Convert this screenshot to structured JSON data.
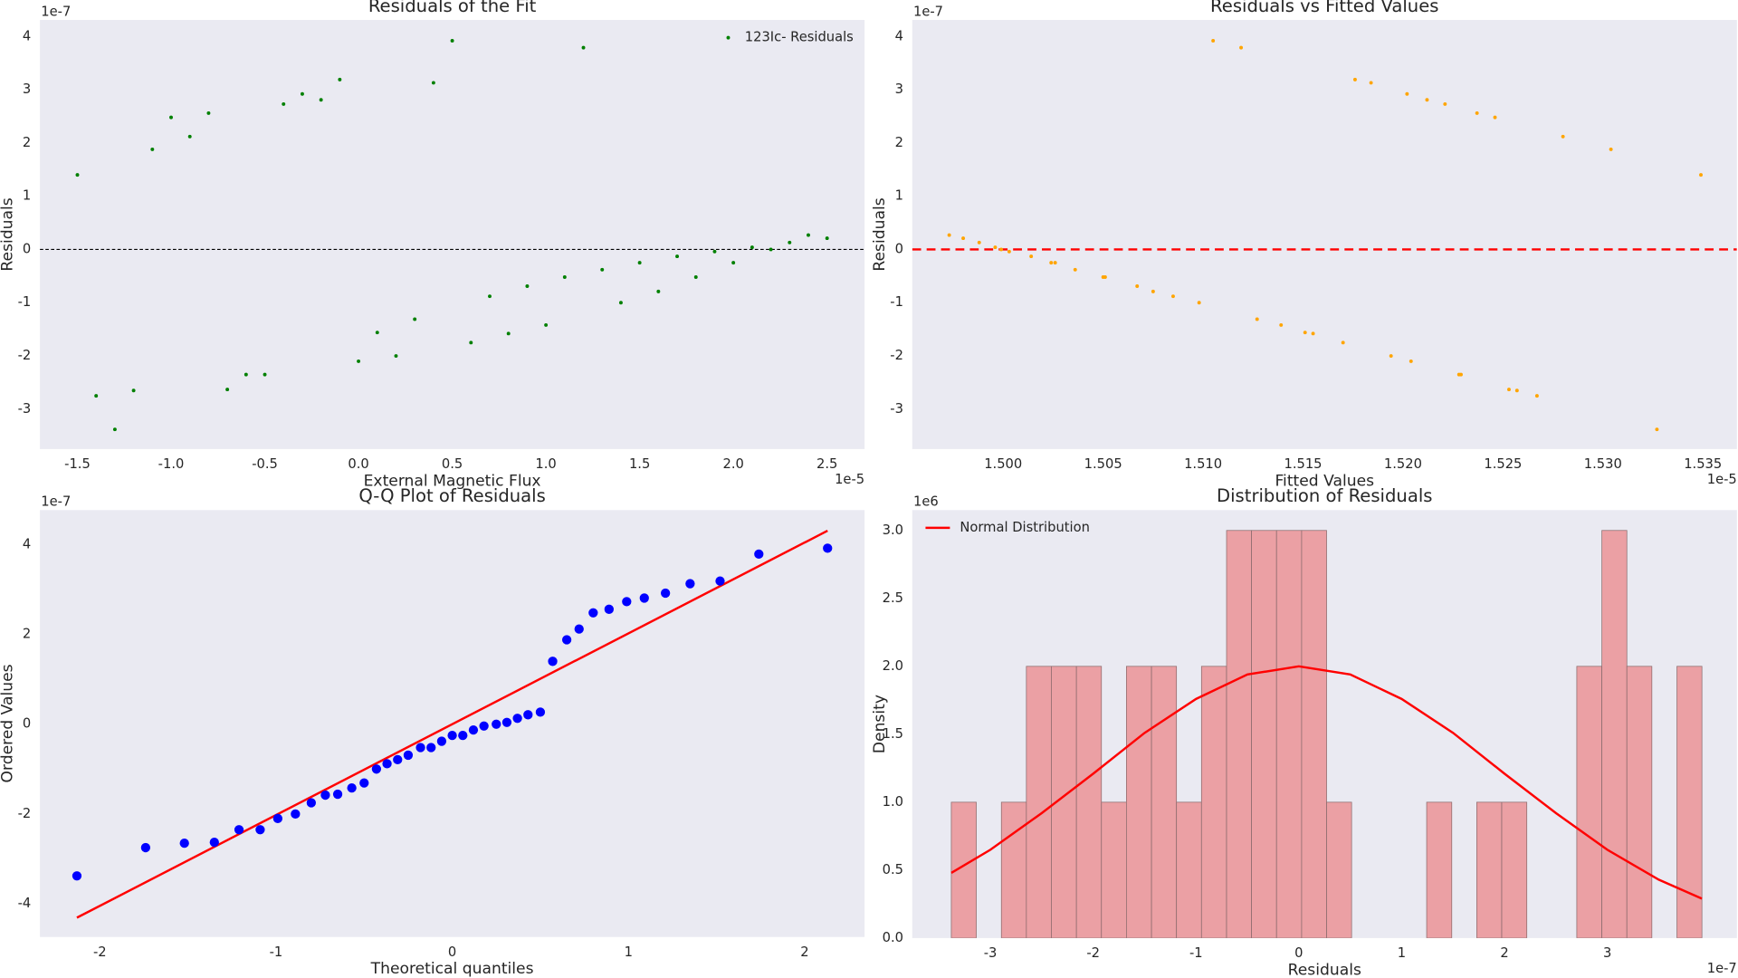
{
  "chart_data": [
    {
      "type": "scatter",
      "title": "Residuals of the Fit",
      "x_label": "External Magnetic Flux",
      "y_label": "Residuals",
      "x_offset": "1e-5",
      "y_offset": "1e-7",
      "legend": "upper right",
      "hline": 0,
      "hline_color": "black",
      "xlim": [
        -1.7,
        2.7
      ],
      "ylim": [
        -3.75,
        4.31
      ],
      "xticks": [
        -1.5,
        {
          "value": -1.0,
          "label": "-1.0"
        },
        -0.5,
        {
          "value": 0,
          "label": "0.0"
        },
        0.5,
        {
          "value": 1.0,
          "label": "1.0"
        },
        1.5,
        {
          "value": 2.0,
          "label": "2.0"
        },
        2.5
      ],
      "yticks": [
        -3,
        -2,
        -1,
        0,
        1,
        2,
        3,
        4
      ],
      "series": [
        {
          "name": "123Ic- Residuals",
          "color": "green",
          "x": [
            -1.5,
            -1.4,
            -1.3,
            -1.2,
            -1.1,
            -1.0,
            -0.9,
            -0.8,
            -0.7,
            -0.6,
            -0.5,
            -0.4,
            -0.3,
            -0.2,
            -0.1,
            0,
            0.1,
            0.2,
            0.3,
            0.4,
            0.5,
            0.6,
            0.7,
            0.8,
            0.9,
            1.0,
            1.1,
            1.2,
            1.3,
            1.4,
            1.5,
            1.6,
            1.7,
            1.8,
            1.9,
            2.0,
            2.1,
            2.2,
            2.3,
            2.4,
            2.5
          ],
          "values": [
            1.4,
            -2.75,
            -3.38,
            -2.65,
            1.88,
            2.48,
            2.12,
            2.56,
            -2.63,
            -2.35,
            -2.35,
            2.73,
            2.92,
            2.81,
            3.19,
            -2.1,
            -1.56,
            -2.0,
            -1.31,
            3.13,
            3.92,
            -1.75,
            -0.88,
            -1.58,
            -0.69,
            -1.42,
            -0.52,
            3.79,
            -0.38,
            -1.0,
            -0.25,
            -0.79,
            -0.13,
            -0.52,
            -0.04,
            -0.25,
            0.04,
            0.0,
            0.13,
            0.27,
            0.21
          ]
        }
      ]
    },
    {
      "type": "scatter",
      "title": "Residuals vs Fitted Values",
      "x_label": "Fitted Values",
      "y_label": "Residuals",
      "x_offset": "1e-5",
      "y_offset": "1e-7",
      "hline": 0,
      "hline_color": "red",
      "xlim": [
        1.49545,
        1.5367
      ],
      "ylim": [
        -3.75,
        4.31
      ],
      "xticks": [
        {
          "value": 1.5,
          "label": "1.500"
        },
        1.505,
        {
          "value": 1.51,
          "label": "1.510"
        },
        1.515,
        {
          "value": 1.52,
          "label": "1.520"
        },
        1.525,
        {
          "value": 1.53,
          "label": "1.530"
        },
        1.535
      ],
      "yticks": [
        -3,
        -2,
        -1,
        0,
        1,
        2,
        3,
        4
      ],
      "series": [
        {
          "color": "orange",
          "x": [
            1.4973,
            1.498,
            1.4988,
            1.4996,
            1.4999,
            1.5003,
            1.5014,
            1.5024,
            1.5026,
            1.5036,
            1.505,
            1.5051,
            1.5067,
            1.5075,
            1.5085,
            1.5098,
            1.5105,
            1.5119,
            1.5127,
            1.5139,
            1.5151,
            1.5155,
            1.517,
            1.5176,
            1.5184,
            1.5194,
            1.5204,
            1.5202,
            1.5212,
            1.5221,
            1.5228,
            1.5229,
            1.5237,
            1.5246,
            1.5253,
            1.5257,
            1.5267,
            1.528,
            1.5304,
            1.5327,
            1.5349
          ],
          "values": [
            0.27,
            0.21,
            0.13,
            0.04,
            0.0,
            -0.04,
            -0.13,
            -0.25,
            -0.25,
            -0.38,
            -0.52,
            -0.52,
            -0.69,
            -0.79,
            -0.88,
            -1.0,
            3.92,
            3.79,
            -1.31,
            -1.42,
            -1.56,
            -1.58,
            -1.75,
            3.19,
            3.13,
            -2.0,
            -2.1,
            2.92,
            2.81,
            2.73,
            -2.35,
            -2.35,
            2.56,
            2.48,
            -2.63,
            -2.65,
            -2.75,
            2.12,
            1.88,
            -3.38,
            1.4
          ]
        }
      ]
    },
    {
      "type": "scatter",
      "title": "Q-Q Plot of Residuals",
      "x_label": "Theoretical quantiles",
      "y_label": "Ordered Values",
      "y_offset": "1e-7",
      "xlim": [
        -2.34,
        2.34
      ],
      "ylim": [
        -4.74,
        4.77
      ],
      "xticks": [
        -2,
        -1,
        0,
        1,
        2
      ],
      "yticks": [
        -4,
        -2,
        0,
        2,
        4
      ],
      "series": [
        {
          "color": "blue",
          "x": [
            -2.13,
            -1.74,
            -1.52,
            -1.35,
            -1.21,
            -1.09,
            -0.99,
            -0.89,
            -0.8,
            -0.72,
            -0.65,
            -0.57,
            -0.5,
            -0.43,
            -0.37,
            -0.31,
            -0.25,
            -0.18,
            -0.12,
            -0.06,
            0,
            0.06,
            0.12,
            0.18,
            0.25,
            0.31,
            0.37,
            0.43,
            0.5,
            0.57,
            0.65,
            0.72,
            0.8,
            0.89,
            0.99,
            1.09,
            1.21,
            1.35,
            1.52,
            1.74,
            2.13
          ],
          "values": [
            -3.38,
            -2.75,
            -2.65,
            -2.63,
            -2.35,
            -2.35,
            -2.1,
            -2.0,
            -1.75,
            -1.58,
            -1.56,
            -1.42,
            -1.31,
            -1.0,
            -0.88,
            -0.79,
            -0.69,
            -0.52,
            -0.52,
            -0.38,
            -0.25,
            -0.25,
            -0.13,
            -0.04,
            0.0,
            0.04,
            0.13,
            0.21,
            0.27,
            1.4,
            1.88,
            2.12,
            2.48,
            2.56,
            2.73,
            2.81,
            2.92,
            3.13,
            3.19,
            3.79,
            3.92
          ]
        }
      ],
      "fit_line": {
        "color": "red",
        "x": [
          -2.13,
          2.13
        ],
        "values": [
          -4.31,
          4.31
        ]
      }
    },
    {
      "type": "histogram",
      "title": "Distribution of Residuals",
      "x_label": "Residuals",
      "y_label": "Density",
      "x_offset": "1e-7",
      "y_offset": "1e6",
      "legend": "upper left",
      "color": "#eba0a4",
      "xlim": [
        -3.76,
        4.26
      ],
      "ylim": [
        0,
        3.15
      ],
      "xticks": [
        -3,
        -2,
        -1,
        0,
        1,
        2,
        3
      ],
      "yticks": [
        {
          "value": 0,
          "label": "0.0"
        },
        0.5,
        {
          "value": 1,
          "label": "1.0"
        },
        1.5,
        {
          "value": 2,
          "label": "2.0"
        },
        2.5,
        {
          "value": 3,
          "label": "3.0"
        }
      ],
      "bins": [
        -3.38,
        -3.137,
        -2.893,
        -2.65,
        -2.407,
        -2.163,
        -1.92,
        -1.677,
        -1.433,
        -1.19,
        -0.947,
        -0.703,
        -0.46,
        -0.217,
        0.027,
        0.27,
        0.513,
        0.757,
        1.0,
        1.243,
        1.487,
        1.73,
        1.973,
        2.217,
        2.46,
        2.703,
        2.947,
        3.19,
        3.433,
        3.677,
        3.92
      ],
      "values": [
        1,
        0,
        1,
        2,
        2,
        2,
        1,
        2,
        2,
        1,
        2,
        3,
        3,
        3,
        3,
        1,
        0,
        0,
        0,
        1,
        0,
        1,
        1,
        0,
        0,
        2,
        3,
        2,
        0,
        2
      ],
      "curve": {
        "name": "Normal Distribution",
        "color": "red",
        "x": [
          -3.38,
          -3,
          -2.5,
          -2,
          -1.5,
          -1,
          -0.5,
          0,
          0.5,
          1,
          1.5,
          2,
          2.5,
          3,
          3.5,
          3.92
        ],
        "values": [
          0.48,
          0.65,
          0.92,
          1.21,
          1.51,
          1.76,
          1.94,
          2.0,
          1.94,
          1.76,
          1.51,
          1.21,
          0.92,
          0.65,
          0.43,
          0.29
        ]
      }
    }
  ]
}
